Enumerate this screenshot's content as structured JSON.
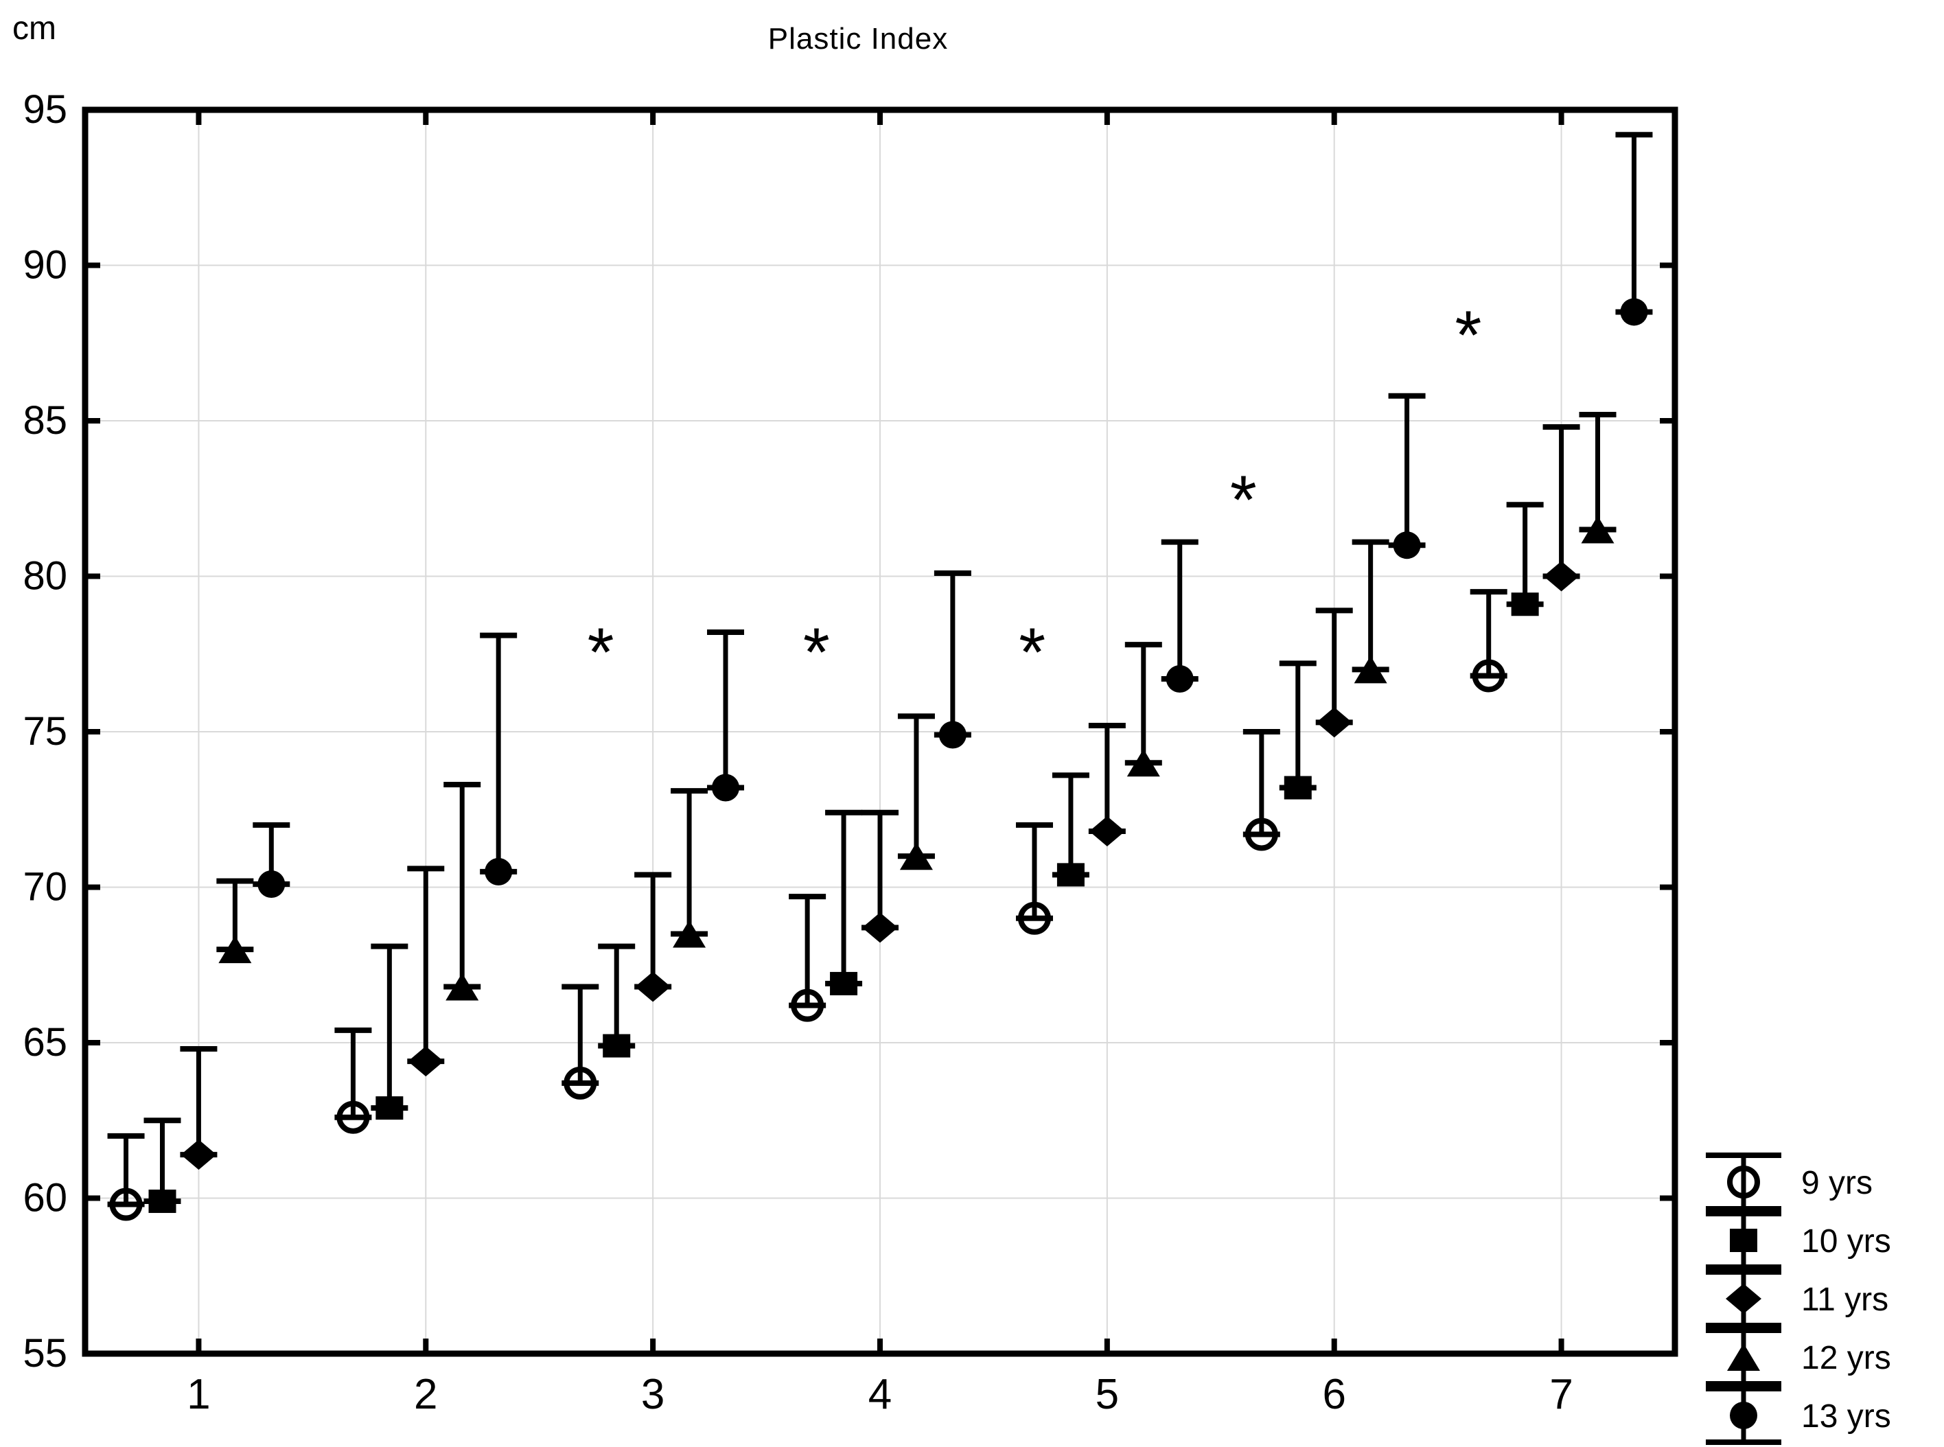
{
  "chart_data": {
    "type": "scatter",
    "title": "Plastic Index",
    "y_unit_label": "cm",
    "xlim": [
      0.5,
      7.5
    ],
    "ylim": [
      55,
      95
    ],
    "x_ticks": [
      1,
      2,
      3,
      4,
      5,
      6,
      7
    ],
    "y_ticks": [
      55,
      60,
      65,
      70,
      75,
      80,
      85,
      90,
      95
    ],
    "grid": true,
    "grid_color": "#d9d9d9",
    "axis_color": "#000000",
    "legend_position": "bottom-right-outside",
    "error_bar_direction": "upper",
    "series": [
      {
        "name": "9 yrs",
        "marker": "open-circle",
        "offset": -0.32,
        "x": [
          1,
          2,
          3,
          4,
          5,
          6,
          7
        ],
        "means": [
          59.8,
          62.6,
          63.7,
          66.2,
          69.0,
          71.7,
          76.8
        ],
        "upper": [
          62.0,
          65.4,
          66.8,
          69.7,
          72.0,
          75.0,
          79.5
        ]
      },
      {
        "name": "10 yrs",
        "marker": "filled-square",
        "offset": -0.16,
        "x": [
          1,
          2,
          3,
          4,
          5,
          6,
          7
        ],
        "means": [
          59.9,
          62.9,
          64.9,
          66.9,
          70.4,
          73.2,
          79.1
        ],
        "upper": [
          62.5,
          68.1,
          68.1,
          72.4,
          73.6,
          77.2,
          82.3
        ]
      },
      {
        "name": "11 yrs",
        "marker": "filled-diamond",
        "offset": 0,
        "x": [
          1,
          2,
          3,
          4,
          5,
          6,
          7
        ],
        "means": [
          61.4,
          64.4,
          66.8,
          68.7,
          71.8,
          75.3,
          80.0
        ],
        "upper": [
          64.8,
          70.6,
          70.4,
          72.4,
          75.2,
          78.9,
          84.8
        ]
      },
      {
        "name": "12 yrs",
        "marker": "filled-triangle",
        "offset": 0.16,
        "x": [
          1,
          2,
          3,
          4,
          5,
          6,
          7
        ],
        "means": [
          68.0,
          66.8,
          68.5,
          71.0,
          74.0,
          77.0,
          81.5
        ],
        "upper": [
          70.2,
          73.3,
          73.1,
          75.5,
          77.8,
          81.1,
          85.2
        ]
      },
      {
        "name": "13 yrs",
        "marker": "filled-circle",
        "offset": 0.32,
        "x": [
          1,
          2,
          3,
          4,
          5,
          6,
          7
        ],
        "means": [
          70.1,
          70.5,
          73.2,
          74.9,
          76.7,
          81.0,
          88.5
        ],
        "upper": [
          72.0,
          78.1,
          78.2,
          80.1,
          81.1,
          85.8,
          94.2
        ]
      }
    ],
    "annotations": [
      {
        "symbol": "*",
        "x": 2.77,
        "y": 78.3
      },
      {
        "symbol": "*",
        "x": 3.72,
        "y": 78.3
      },
      {
        "symbol": "*",
        "x": 4.67,
        "y": 78.3
      },
      {
        "symbol": "*",
        "x": 5.6,
        "y": 83.2
      },
      {
        "symbol": "*",
        "x": 6.59,
        "y": 88.5
      }
    ],
    "legend": [
      {
        "label": "9 yrs",
        "marker": "open-circle"
      },
      {
        "label": "10 yrs",
        "marker": "filled-square"
      },
      {
        "label": "11 yrs",
        "marker": "filled-diamond"
      },
      {
        "label": "12 yrs",
        "marker": "filled-triangle"
      },
      {
        "label": "13 yrs",
        "marker": "filled-circle"
      }
    ]
  }
}
